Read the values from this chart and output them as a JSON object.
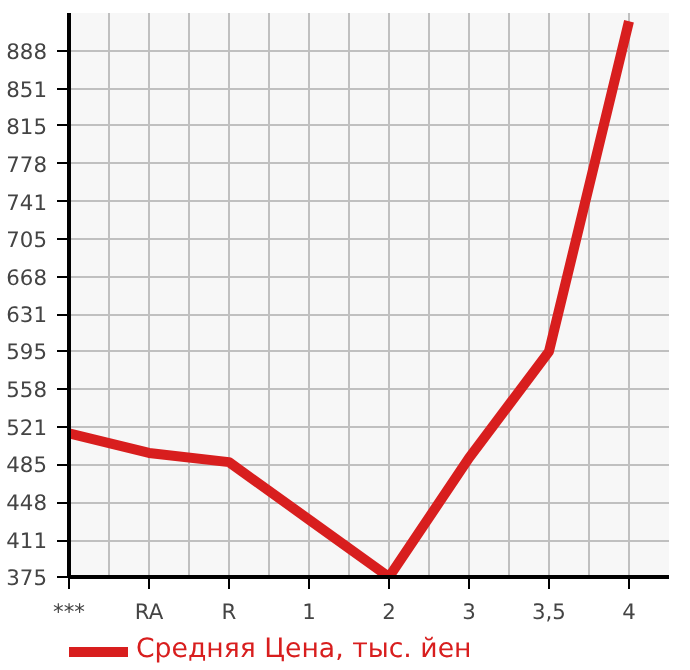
{
  "chart_data": {
    "type": "line",
    "categories": [
      "***",
      "RA",
      "R",
      "1",
      "2",
      "3",
      "3,5",
      "4"
    ],
    "series": [
      {
        "name": "Средняя Цена, тыс. йен",
        "color": "#d81e1e",
        "values": [
          515,
          496,
          487,
          431,
          375,
          491,
          595,
          917
        ]
      }
    ],
    "ylim": [
      375,
      925
    ],
    "yticks": [
      375,
      411,
      448,
      485,
      521,
      558,
      595,
      631,
      668,
      705,
      741,
      778,
      815,
      851,
      888
    ],
    "grid": true,
    "legend": "bottom",
    "marker": "none",
    "line_style": "solid"
  }
}
